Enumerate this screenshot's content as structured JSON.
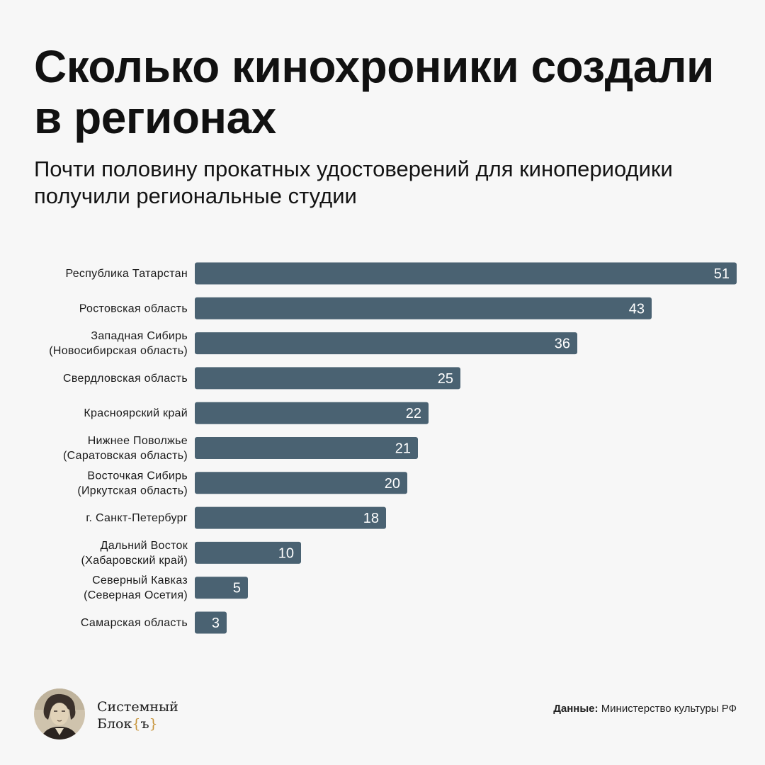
{
  "title": "Сколько кинохроники создали в регионах",
  "subtitle": "Почти половину прокатных удостоверений для кинопериодики получили региональные студии",
  "chart_data": {
    "type": "bar",
    "orientation": "horizontal",
    "bar_color": "#4a6272",
    "label_color": "#ffffff",
    "categories": [
      [
        "Республика Татарстан"
      ],
      [
        "Ростовская область"
      ],
      [
        "Западная Сибирь",
        "(Новосибирская область)"
      ],
      [
        "Свердловская область"
      ],
      [
        "Красноярский край"
      ],
      [
        "Нижнее Поволжье",
        "(Саратовская область)"
      ],
      [
        "Восточкая Сибирь",
        "(Иркутская область)"
      ],
      [
        "г. Санкт-Петербург"
      ],
      [
        "Дальний Восток",
        "(Хабаровский край)"
      ],
      [
        "Северный Кавказ",
        "(Северная Осетия)"
      ],
      [
        "Самарская область"
      ]
    ],
    "values": [
      51,
      43,
      36,
      25,
      22,
      21,
      20,
      18,
      10,
      5,
      3
    ],
    "xlim": [
      0,
      51
    ],
    "grid": false,
    "legend": "none"
  },
  "brand": {
    "line1": "Системный",
    "line2_text": "Блок",
    "line2_brace_open": "{",
    "line2_brace_char": "ъ",
    "line2_brace_close": "}"
  },
  "source": {
    "label": "Данные:",
    "text": "Министерство культуры РФ"
  }
}
